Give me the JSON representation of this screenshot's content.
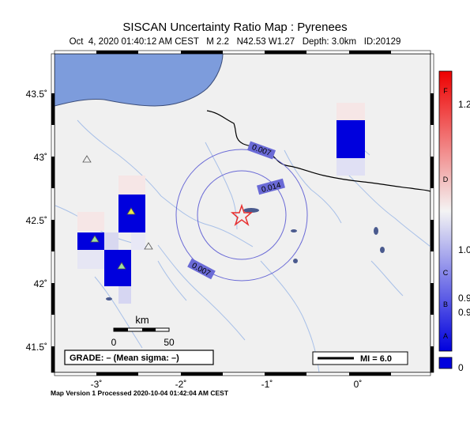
{
  "title": "SISCAN Uncertainty Ratio Map : Pyrenees",
  "subtitle": "Oct  4, 2020 01:40:12 AM CEST   M 2.2   N42.53 W1.27   Depth: 3.0km   ID:20129",
  "footer": "Map Version 1 Processed 2020-10-04 01:42:04 AM CEST",
  "axes": {
    "lat_labels": [
      "43.5˚",
      "43˚",
      "42.5˚",
      "42˚",
      "41.5˚"
    ],
    "lon_labels": [
      "-3˚",
      "-2˚",
      "-1˚",
      "0˚"
    ]
  },
  "scale_bar": {
    "unit": "km",
    "tick_start": "0",
    "tick_end": "50"
  },
  "grade_box": "GRADE: – (Mean sigma: –)",
  "mi_legend": "MI = 6.0",
  "contours": [
    "0.007",
    "0.014",
    "0.007"
  ],
  "colorbar": {
    "grades": [
      "F",
      "D",
      "C",
      "B",
      "A"
    ],
    "values": [
      "1.2",
      "1.0",
      "0.9",
      "0.9",
      "0"
    ],
    "colors": {
      "low": "#0000dd",
      "mid": "#f4f4f4",
      "high": "#ee0000"
    }
  },
  "colors": {
    "land": "#f0f0f0",
    "water": "#7d9cdc",
    "river": "#a8c0e8",
    "contour": "#6a6ad6",
    "epicenter": "#e83030",
    "station": "#9fe09f",
    "station_alt": "#e8e84a"
  }
}
